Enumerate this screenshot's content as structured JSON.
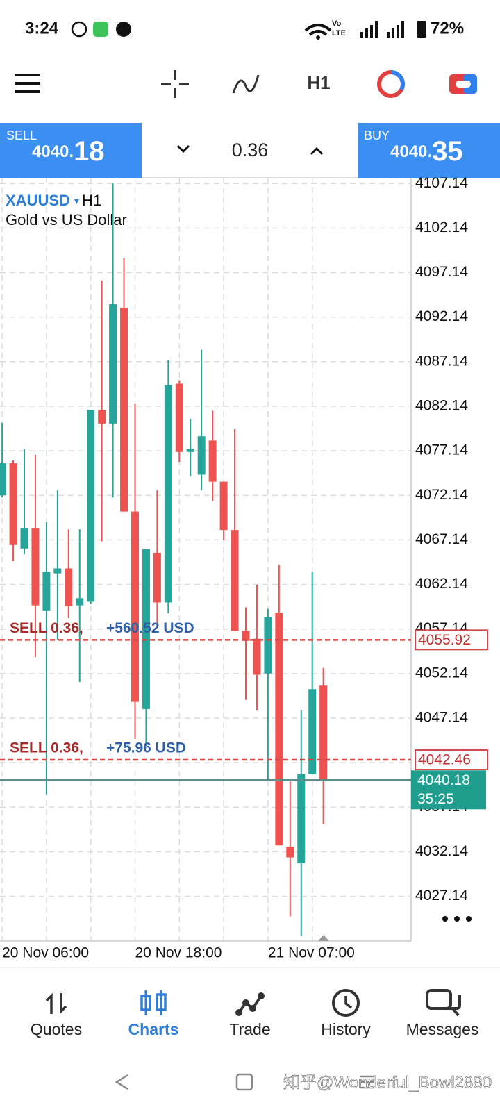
{
  "status": {
    "time": "3:24",
    "volte": "Vo",
    "lte": "LTE",
    "battery": "72%"
  },
  "toolbar": {
    "timeframe": "H1"
  },
  "ticket": {
    "sell": {
      "label": "SELL",
      "price_small": "4040.",
      "price_big": "18"
    },
    "volume": "0.36",
    "buy": {
      "label": "BUY",
      "price_small": "4040.",
      "price_big": "35"
    }
  },
  "chart_data": {
    "type": "candlestick",
    "symbol": "XAUUSD",
    "timeframe": "H1",
    "title": "Gold vs US Dollar",
    "categories": [
      "20 Nov 06:00",
      null,
      null,
      null,
      null,
      null,
      null,
      null,
      null,
      null,
      null,
      null,
      "20 Nov 18:00",
      null,
      null,
      null,
      null,
      null,
      null,
      null,
      null,
      null,
      null,
      null,
      "21 Nov 07:00",
      null,
      null,
      null,
      null,
      null
    ],
    "open": [
      4072.15,
      4075.74,
      4066.17,
      4068.49,
      4059.16,
      4063.38,
      4063.94,
      4059.8,
      4060.2,
      4081.72,
      4080.2,
      4093.19,
      4070.32,
      4048.16,
      4065.7,
      4060.12,
      4084.67,
      4077.01,
      4074.46,
      4078.29,
      4073.67,
      4068.25,
      4056.93,
      4056.05,
      4052.15,
      4058.99,
      4032.7,
      4030.87,
      4040.83,
      4050.79
    ],
    "high": [
      4080.28,
      4076.06,
      4077.33,
      4076.69,
      4069.12,
      4072.71,
      4068.33,
      4068.33,
      4081.72,
      4096.22,
      4107.14,
      4098.77,
      4082.43,
      4066.09,
      4072.71,
      4087.29,
      4085.06,
      4080.68,
      4088.49,
      4081.64,
      4073.67,
      4079.56,
      4059.56,
      4062.11,
      4059.4,
      4064.34,
      4040.03,
      4048.0,
      4063.54,
      4052.78
    ],
    "low": [
      4071.91,
      4064.74,
      4065.54,
      4053.98,
      4038.6,
      4055.97,
      4058.36,
      4051.19,
      4059.96,
      4066.97,
      4071.91,
      4070.32,
      4044.81,
      4044.02,
      4057.57,
      4058.92,
      4075.9,
      4074.3,
      4072.71,
      4071.52,
      4067.13,
      4056.93,
      4049.2,
      4048.0,
      4040.19,
      4032.86,
      4024.89,
      4022.66,
      4040.83,
      4035.25
    ],
    "close": [
      4075.74,
      4066.57,
      4068.49,
      4059.8,
      4063.54,
      4063.94,
      4059.72,
      4060.6,
      4081.72,
      4080.2,
      4093.59,
      4070.32,
      4048.96,
      4066.09,
      4060.12,
      4084.51,
      4077.01,
      4077.33,
      4078.77,
      4073.67,
      4068.25,
      4056.93,
      4055.81,
      4052.01,
      4058.52,
      4032.86,
      4031.51,
      4040.83,
      4050.39,
      4040.18
    ],
    "up_color": "#26a69a",
    "down_color": "#ef5350",
    "ylim": [
      4022.12,
      4107.78
    ],
    "yticks": [
      4107.14,
      4102.14,
      4097.14,
      4092.14,
      4087.14,
      4082.14,
      4077.14,
      4072.14,
      4067.14,
      4062.14,
      4057.14,
      4052.14,
      4047.14,
      4042.14,
      4037.14,
      4032.14,
      4027.14
    ],
    "grid": true,
    "orders": [
      {
        "label": "SELL 0.36,",
        "profit": "+560.52 USD",
        "price": 4055.92
      },
      {
        "label": "SELL 0.36,",
        "profit": "+75.96 USD",
        "price": 4042.46
      }
    ],
    "bid": 4040.18,
    "timer": "35:25"
  },
  "nav": [
    "Quotes",
    "Charts",
    "Trade",
    "History",
    "Messages"
  ],
  "watermark": "知乎@Wonderful_Bowl2880"
}
